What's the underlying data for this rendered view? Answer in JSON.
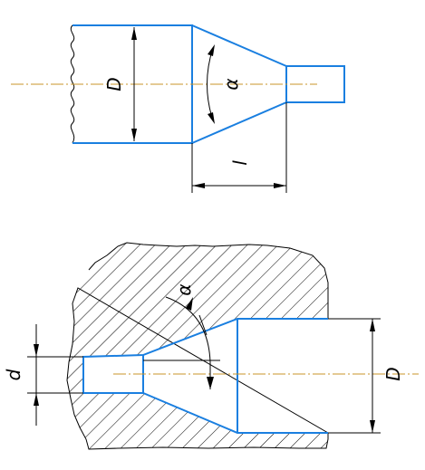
{
  "shaft_view": {
    "diameter_label": "D",
    "angle_label": "α",
    "length_label": "l"
  },
  "bore_view": {
    "angle_label": "α",
    "small_diameter_label": "d",
    "large_diameter_label": "D"
  },
  "colors": {
    "contour": "#1a7fe0",
    "axis_line": "#c8962a",
    "dimension": "#000000"
  }
}
